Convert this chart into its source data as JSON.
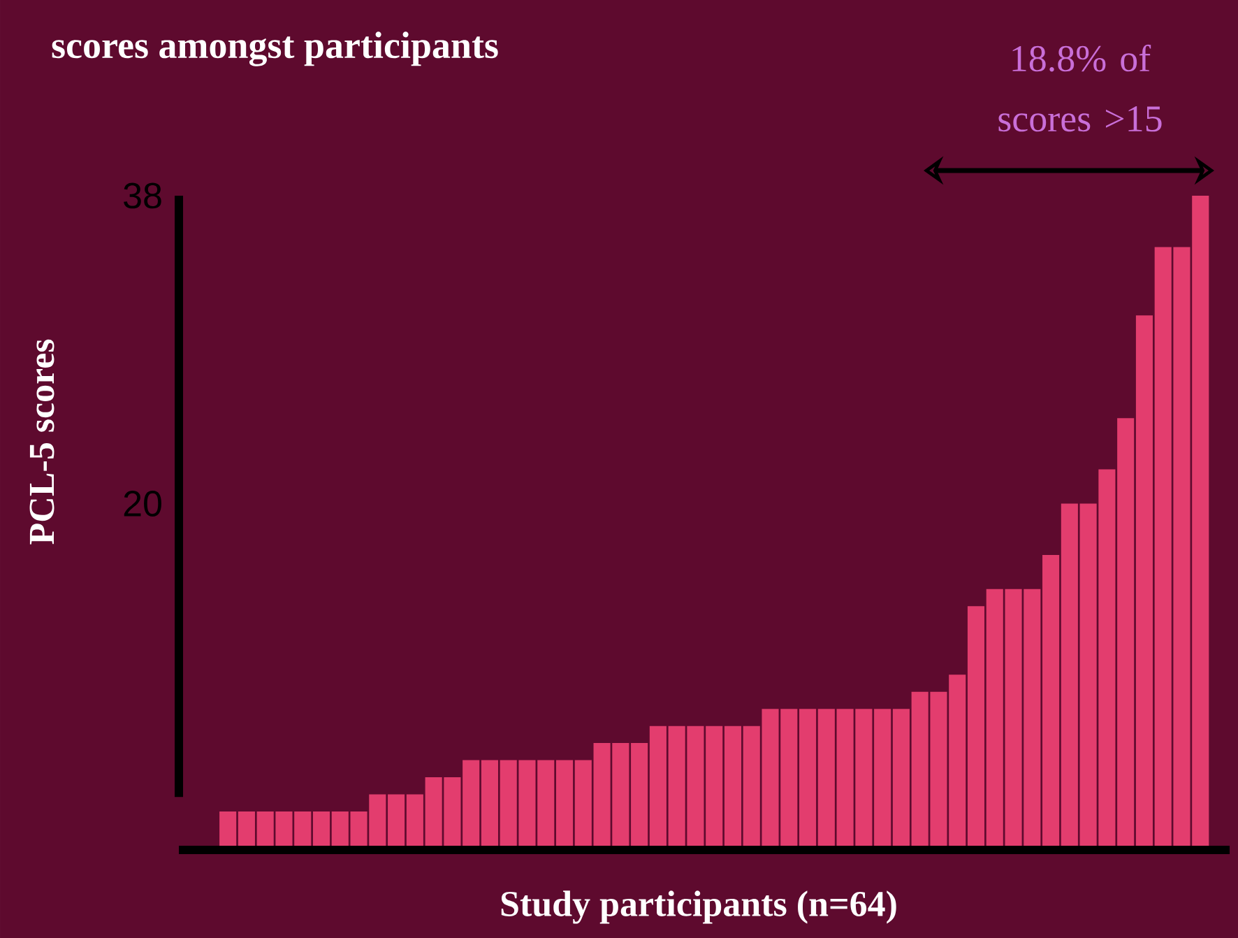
{
  "chart_data": {
    "type": "bar",
    "title": "scores amongst participants",
    "xlabel": "Study participants (n=64)",
    "ylabel": "PCL-5 scores",
    "categories": [
      null,
      null,
      null,
      null,
      null,
      null,
      null,
      null,
      null,
      null,
      null,
      null,
      null,
      null,
      null,
      null,
      null,
      null,
      null,
      null,
      null,
      null,
      null,
      null,
      null,
      null,
      null,
      null,
      null,
      null,
      null,
      null,
      null,
      null,
      null,
      null,
      null,
      null,
      null,
      null,
      null,
      null,
      null,
      null,
      null,
      null,
      null,
      null,
      null,
      null,
      null,
      null,
      null
    ],
    "values": [
      2,
      2,
      2,
      2,
      2,
      2,
      2,
      2,
      3,
      3,
      3,
      4,
      4,
      5,
      5,
      5,
      5,
      5,
      5,
      5,
      6,
      6,
      6,
      7,
      7,
      7,
      7,
      7,
      7,
      8,
      8,
      8,
      8,
      8,
      8,
      8,
      8,
      9,
      9,
      10,
      14,
      15,
      15,
      15,
      17,
      20,
      20,
      22,
      25,
      31,
      35,
      35,
      38
    ],
    "color": "#e33d6e",
    "ylim": [
      0,
      38
    ],
    "yticks": [
      {
        "value": 20,
        "label": "20"
      },
      {
        "value": 38,
        "label": "38"
      }
    ],
    "tick_labels": "y",
    "annotations": [
      "18.8% of scores >15"
    ]
  }
}
